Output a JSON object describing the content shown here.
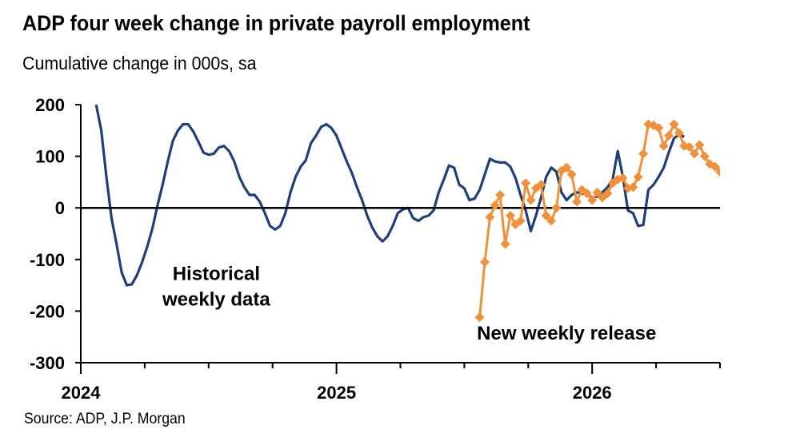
{
  "title": "ADP four week change in private payroll employment",
  "subtitle": "Cumulative change in 000s, sa",
  "source": "Source: ADP, J.P. Morgan",
  "chart_data": {
    "type": "line",
    "yticks": [
      "200",
      "100",
      "0",
      "-100",
      "-200",
      "-300"
    ],
    "xticks": [
      "2024",
      "2025",
      "2026"
    ],
    "ylim": [
      -300,
      200
    ],
    "xlim": [
      2024.0,
      2026.5
    ],
    "grid": false,
    "annotations": [
      {
        "lines": [
          "Historical",
          "weekly data"
        ],
        "x": 2024.53,
        "y": -140
      },
      {
        "lines": [
          "New weekly release"
        ],
        "x": 2025.9,
        "y": -255
      }
    ],
    "colors": {
      "historical": "#1f3f7a",
      "new": "#f0903a",
      "zero": "#000000",
      "axis": "#000000"
    },
    "series": [
      {
        "key": "historical",
        "values": [
          [
            2024.06,
            200
          ],
          [
            2024.08,
            150
          ],
          [
            2024.1,
            60
          ],
          [
            2024.12,
            -20
          ],
          [
            2024.14,
            -70
          ],
          [
            2024.16,
            -125
          ],
          [
            2024.18,
            -150
          ],
          [
            2024.2,
            -148
          ],
          [
            2024.22,
            -130
          ],
          [
            2024.24,
            -105
          ],
          [
            2024.26,
            -75
          ],
          [
            2024.28,
            -40
          ],
          [
            2024.3,
            5
          ],
          [
            2024.32,
            45
          ],
          [
            2024.34,
            90
          ],
          [
            2024.36,
            130
          ],
          [
            2024.38,
            150
          ],
          [
            2024.4,
            162
          ],
          [
            2024.42,
            162
          ],
          [
            2024.44,
            148
          ],
          [
            2024.46,
            128
          ],
          [
            2024.48,
            107
          ],
          [
            2024.5,
            103
          ],
          [
            2024.52,
            105
          ],
          [
            2024.54,
            117
          ],
          [
            2024.56,
            120
          ],
          [
            2024.58,
            110
          ],
          [
            2024.6,
            90
          ],
          [
            2024.62,
            60
          ],
          [
            2024.64,
            40
          ],
          [
            2024.66,
            25
          ],
          [
            2024.68,
            25
          ],
          [
            2024.7,
            12
          ],
          [
            2024.72,
            -10
          ],
          [
            2024.74,
            -35
          ],
          [
            2024.76,
            -42
          ],
          [
            2024.78,
            -35
          ],
          [
            2024.8,
            -10
          ],
          [
            2024.82,
            30
          ],
          [
            2024.84,
            60
          ],
          [
            2024.86,
            80
          ],
          [
            2024.88,
            92
          ],
          [
            2024.9,
            125
          ],
          [
            2024.92,
            140
          ],
          [
            2024.94,
            157
          ],
          [
            2024.96,
            162
          ],
          [
            2024.98,
            155
          ],
          [
            2025.0,
            140
          ],
          [
            2025.02,
            115
          ],
          [
            2025.04,
            90
          ],
          [
            2025.06,
            68
          ],
          [
            2025.08,
            40
          ],
          [
            2025.1,
            15
          ],
          [
            2025.12,
            -15
          ],
          [
            2025.14,
            -38
          ],
          [
            2025.16,
            -55
          ],
          [
            2025.18,
            -65
          ],
          [
            2025.2,
            -55
          ],
          [
            2025.22,
            -35
          ],
          [
            2025.24,
            -10
          ],
          [
            2025.26,
            -3
          ],
          [
            2025.28,
            0
          ],
          [
            2025.3,
            -20
          ],
          [
            2025.32,
            -25
          ],
          [
            2025.34,
            -18
          ],
          [
            2025.36,
            -15
          ],
          [
            2025.38,
            -5
          ],
          [
            2025.4,
            30
          ],
          [
            2025.42,
            55
          ],
          [
            2025.44,
            82
          ],
          [
            2025.46,
            78
          ],
          [
            2025.48,
            45
          ],
          [
            2025.5,
            38
          ],
          [
            2025.52,
            15
          ],
          [
            2025.54,
            18
          ],
          [
            2025.56,
            35
          ],
          [
            2025.58,
            65
          ],
          [
            2025.6,
            95
          ],
          [
            2025.62,
            90
          ],
          [
            2025.64,
            88
          ],
          [
            2025.66,
            88
          ],
          [
            2025.68,
            80
          ],
          [
            2025.7,
            58
          ],
          [
            2025.72,
            25
          ],
          [
            2025.74,
            -5
          ],
          [
            2025.76,
            -45
          ],
          [
            2025.78,
            -15
          ],
          [
            2025.8,
            20
          ],
          [
            2025.82,
            60
          ],
          [
            2025.84,
            78
          ],
          [
            2025.86,
            70
          ],
          [
            2025.88,
            30
          ],
          [
            2025.9,
            15
          ],
          [
            2025.92,
            25
          ],
          [
            2025.94,
            30
          ],
          [
            2025.96,
            28
          ],
          [
            2025.98,
            25
          ],
          [
            2026.0,
            20
          ],
          [
            2026.02,
            22
          ],
          [
            2026.04,
            30
          ],
          [
            2026.06,
            40
          ],
          [
            2026.08,
            55
          ],
          [
            2026.1,
            110
          ],
          [
            2026.12,
            60
          ],
          [
            2026.14,
            -5
          ],
          [
            2026.16,
            -10
          ],
          [
            2026.18,
            -35
          ],
          [
            2026.2,
            -33
          ],
          [
            2026.22,
            35
          ],
          [
            2026.24,
            45
          ],
          [
            2026.26,
            60
          ],
          [
            2026.28,
            78
          ],
          [
            2026.3,
            108
          ],
          [
            2026.32,
            135
          ],
          [
            2026.34,
            142
          ],
          [
            2026.36,
            138
          ]
        ]
      },
      {
        "key": "new",
        "values": [
          [
            2025.56,
            -212
          ],
          [
            2025.58,
            -105
          ],
          [
            2025.6,
            -18
          ],
          [
            2025.62,
            5
          ],
          [
            2025.64,
            25
          ],
          [
            2025.66,
            -70
          ],
          [
            2025.68,
            -15
          ],
          [
            2025.7,
            -32
          ],
          [
            2025.72,
            -25
          ],
          [
            2025.74,
            48
          ],
          [
            2025.76,
            15
          ],
          [
            2025.78,
            38
          ],
          [
            2025.8,
            45
          ],
          [
            2025.82,
            -15
          ],
          [
            2025.84,
            -25
          ],
          [
            2025.86,
            0
          ],
          [
            2025.88,
            72
          ],
          [
            2025.9,
            78
          ],
          [
            2025.92,
            65
          ],
          [
            2025.94,
            12
          ],
          [
            2025.96,
            35
          ],
          [
            2025.98,
            28
          ],
          [
            2026.0,
            15
          ],
          [
            2026.02,
            30
          ],
          [
            2026.04,
            20
          ],
          [
            2026.06,
            28
          ],
          [
            2026.08,
            48
          ],
          [
            2026.1,
            55
          ],
          [
            2026.12,
            58
          ],
          [
            2026.14,
            38
          ],
          [
            2026.16,
            40
          ],
          [
            2026.18,
            60
          ],
          [
            2026.2,
            105
          ],
          [
            2026.22,
            162
          ],
          [
            2026.24,
            160
          ],
          [
            2026.26,
            155
          ],
          [
            2026.28,
            120
          ],
          [
            2026.3,
            140
          ],
          [
            2026.32,
            162
          ],
          [
            2026.34,
            145
          ],
          [
            2026.36,
            120
          ],
          [
            2026.38,
            118
          ],
          [
            2026.4,
            105
          ],
          [
            2026.42,
            122
          ],
          [
            2026.44,
            100
          ],
          [
            2026.46,
            85
          ],
          [
            2026.48,
            80
          ],
          [
            2026.5,
            70
          ]
        ]
      }
    ]
  }
}
